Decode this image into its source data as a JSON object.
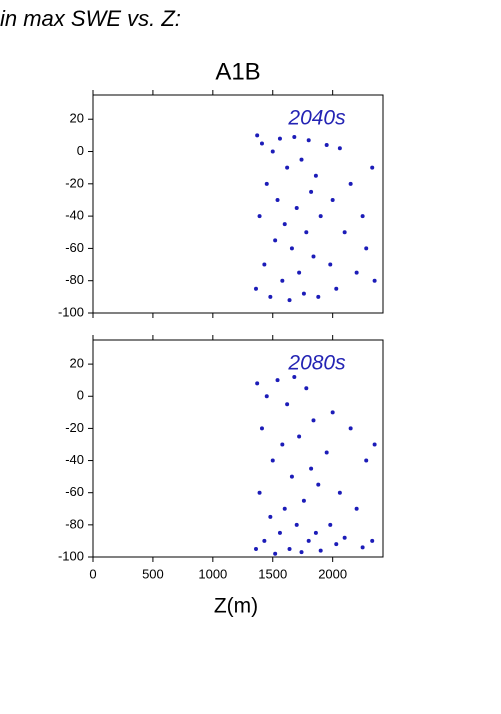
{
  "heading": "in max SWE vs. Z:",
  "chart_data": [
    {
      "type": "scatter",
      "title": "A1B",
      "annotation": "2040s",
      "annotation_color": "#2424b4",
      "xlim": [
        0,
        2420
      ],
      "ylim": [
        -100,
        35
      ],
      "xticks": [
        0,
        500,
        1000,
        1500,
        2000
      ],
      "xtick_labels": false,
      "yticks": [
        -100,
        -80,
        -60,
        -40,
        -20,
        0,
        20
      ],
      "series": [
        {
          "color": "#1c1cb8",
          "x": [
            1360,
            1370,
            1390,
            1410,
            1430,
            1450,
            1480,
            1500,
            1520,
            1540,
            1560,
            1580,
            1600,
            1620,
            1640,
            1660,
            1680,
            1700,
            1720,
            1740,
            1760,
            1780,
            1800,
            1820,
            1840,
            1860,
            1880,
            1900,
            1950,
            1980,
            2000,
            2030,
            2060,
            2100,
            2150,
            2200,
            2250,
            2280,
            2330,
            2350
          ],
          "values": [
            -85,
            10,
            -40,
            5,
            -70,
            -20,
            -90,
            0,
            -55,
            -30,
            8,
            -80,
            -45,
            -10,
            -92,
            -60,
            9,
            -35,
            -75,
            -5,
            -88,
            -50,
            7,
            -25,
            -65,
            -15,
            -90,
            -40,
            4,
            -70,
            -30,
            -85,
            2,
            -50,
            -20,
            -75,
            -40,
            -60,
            -10,
            -80
          ]
        }
      ]
    },
    {
      "type": "scatter",
      "annotation": "2080s",
      "annotation_color": "#2424b4",
      "xlabel": "Z(m)",
      "xlim": [
        0,
        2420
      ],
      "ylim": [
        -100,
        35
      ],
      "xticks": [
        0,
        500,
        1000,
        1500,
        2000
      ],
      "xtick_labels": true,
      "yticks": [
        -100,
        -80,
        -60,
        -40,
        -20,
        0,
        20
      ],
      "series": [
        {
          "color": "#1c1cb8",
          "x": [
            1360,
            1370,
            1390,
            1410,
            1430,
            1450,
            1480,
            1500,
            1520,
            1540,
            1560,
            1580,
            1600,
            1620,
            1640,
            1660,
            1680,
            1700,
            1720,
            1740,
            1760,
            1780,
            1800,
            1820,
            1840,
            1860,
            1880,
            1900,
            1950,
            1980,
            2000,
            2030,
            2060,
            2100,
            2150,
            2200,
            2250,
            2280,
            2330,
            2350
          ],
          "values": [
            -95,
            8,
            -60,
            -20,
            -90,
            0,
            -75,
            -40,
            -98,
            10,
            -85,
            -30,
            -70,
            -5,
            -95,
            -50,
            12,
            -80,
            -25,
            -97,
            -65,
            5,
            -90,
            -45,
            -15,
            -85,
            -55,
            -96,
            -35,
            -80,
            -10,
            -92,
            -60,
            -88,
            -20,
            -70,
            -94,
            -40,
            -90,
            -30
          ]
        }
      ]
    }
  ]
}
